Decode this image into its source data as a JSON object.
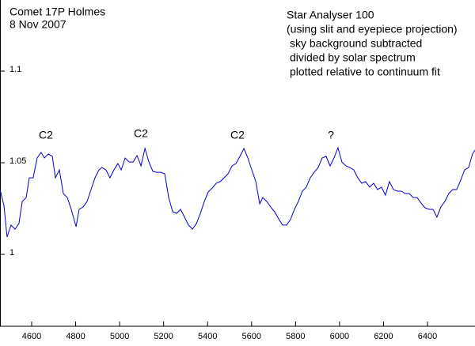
{
  "chart_data": {
    "type": "line",
    "title_lines": [
      "Comet 17P Holmes",
      "8 Nov 2007"
    ],
    "notes": [
      "Star Analyser 100",
      "(using slit and eyepiece projection)",
      "sky background subtracted",
      "divided by solar spectrum",
      "plotted relative to continuum fit"
    ],
    "annotations": [
      "C2",
      "C2",
      "C2",
      "?"
    ],
    "color": "#0000cc",
    "xlim": [
      4456,
      6616
    ],
    "ylim": [
      0.9608,
      1.1388
    ],
    "xticks": [
      4600,
      4800,
      5000,
      5200,
      5400,
      5600,
      5800,
      6000,
      6200,
      6400
    ],
    "yticks": [
      1,
      1.05,
      1.1
    ],
    "x": [
      4456,
      4474,
      4488,
      4506,
      4524,
      4542,
      4557,
      4575,
      4589,
      4607,
      4625,
      4643,
      4658,
      4676,
      4694,
      4708,
      4726,
      4744,
      4762,
      4780,
      4802,
      4816,
      4834,
      4852,
      4870,
      4888,
      4906,
      4920,
      4938,
      4956,
      4974,
      4992,
      5007,
      5025,
      5043,
      5061,
      5079,
      5097,
      5115,
      5133,
      5151,
      5169,
      5187,
      5205,
      5223,
      5241,
      5259,
      5277,
      5295,
      5313,
      5331,
      5349,
      5367,
      5385,
      5403,
      5421,
      5439,
      5457,
      5475,
      5493,
      5511,
      5529,
      5547,
      5565,
      5583,
      5601,
      5619,
      5637,
      5651,
      5669,
      5687,
      5705,
      5723,
      5741,
      5759,
      5777,
      5795,
      5813,
      5831,
      5849,
      5867,
      5885,
      5903,
      5921,
      5939,
      5957,
      5975,
      5993,
      6011,
      6029,
      6047,
      6065,
      6083,
      6101,
      6119,
      6137,
      6155,
      6173,
      6191,
      6209,
      6227,
      6245,
      6263,
      6281,
      6299,
      6317,
      6335,
      6353,
      6371,
      6389,
      6407,
      6425,
      6443,
      6461,
      6479,
      6497,
      6515,
      6533,
      6551,
      6569,
      6587,
      6605,
      6616
    ],
    "values": [
      1.0354,
      1.0267,
      1.0095,
      1.016,
      1.0138,
      1.0168,
      1.0289,
      1.031,
      1.0418,
      1.0418,
      1.0526,
      1.0556,
      1.0526,
      1.0548,
      1.0535,
      1.0418,
      1.0461,
      1.0332,
      1.031,
      1.0246,
      1.0151,
      1.0246,
      1.0259,
      1.0289,
      1.0354,
      1.0418,
      1.0461,
      1.0474,
      1.0461,
      1.0418,
      1.0461,
      1.0496,
      1.0461,
      1.0526,
      1.0504,
      1.0504,
      1.0539,
      1.0483,
      1.0578,
      1.0504,
      1.0453,
      1.0448,
      1.0448,
      1.044,
      1.031,
      1.0233,
      1.0224,
      1.0246,
      1.0203,
      1.016,
      1.0138,
      1.0168,
      1.0224,
      1.0289,
      1.0341,
      1.0362,
      1.0388,
      1.0397,
      1.0418,
      1.044,
      1.0483,
      1.0496,
      1.0535,
      1.0578,
      1.0526,
      1.0461,
      1.0397,
      1.0276,
      1.031,
      1.0289,
      1.0259,
      1.0233,
      1.0194,
      1.016,
      1.016,
      1.019,
      1.0246,
      1.0289,
      1.0345,
      1.0367,
      1.0418,
      1.0448,
      1.0474,
      1.0526,
      1.0535,
      1.0483,
      1.0526,
      1.0582,
      1.0504,
      1.0483,
      1.0474,
      1.0461,
      1.0418,
      1.0388,
      1.0397,
      1.0367,
      1.0388,
      1.0354,
      1.0367,
      1.0323,
      1.0397,
      1.0354,
      1.0345,
      1.0345,
      1.0332,
      1.0332,
      1.031,
      1.031,
      1.028,
      1.0254,
      1.0246,
      1.0246,
      1.0203,
      1.0259,
      1.0289,
      1.0332,
      1.0354,
      1.0354,
      1.0405,
      1.0461,
      1.0474,
      1.0548,
      1.0569
    ]
  }
}
